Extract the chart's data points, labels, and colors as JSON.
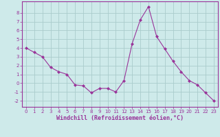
{
  "x": [
    0,
    1,
    2,
    3,
    4,
    5,
    6,
    7,
    8,
    9,
    10,
    11,
    12,
    13,
    14,
    15,
    16,
    17,
    18,
    19,
    20,
    21,
    22,
    23
  ],
  "y": [
    4.0,
    3.5,
    3.0,
    1.8,
    1.3,
    1.0,
    -0.2,
    -0.3,
    -1.1,
    -0.6,
    -0.6,
    -1.0,
    0.3,
    4.5,
    7.2,
    8.7,
    5.3,
    3.9,
    2.5,
    1.3,
    0.3,
    -0.2,
    -1.1,
    -2.0
  ],
  "line_color": "#993399",
  "marker": "D",
  "marker_size": 2,
  "bg_color": "#ceeaea",
  "grid_color": "#aacccc",
  "xlabel": "Windchill (Refroidissement éolien,°C)",
  "xlabel_color": "#993399",
  "ylim": [
    -2.7,
    9.3
  ],
  "xlim": [
    -0.5,
    23.5
  ],
  "yticks": [
    -2,
    -1,
    0,
    1,
    2,
    3,
    4,
    5,
    6,
    7,
    8
  ],
  "xticks": [
    0,
    1,
    2,
    3,
    4,
    5,
    6,
    7,
    8,
    9,
    10,
    11,
    12,
    13,
    14,
    15,
    16,
    17,
    18,
    19,
    20,
    21,
    22,
    23
  ],
  "tick_color": "#993399",
  "tick_fontsize": 5.0,
  "xlabel_fontsize": 6.0,
  "spine_color": "#993399"
}
